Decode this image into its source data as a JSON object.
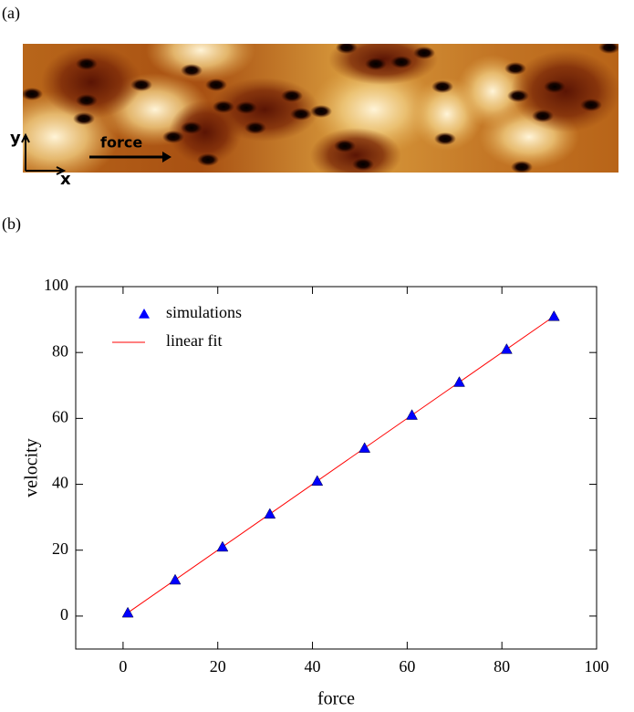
{
  "panel_a": {
    "label": "(a)",
    "arrow_label": "force",
    "axis_y": "y",
    "axis_x": "x"
  },
  "panel_b": {
    "label": "(b)"
  },
  "chart_data": {
    "type": "scatter",
    "xlabel": "force",
    "ylabel": "velocity",
    "xlim": [
      -10,
      100
    ],
    "ylim": [
      -10,
      100
    ],
    "xticks": [
      0,
      20,
      40,
      60,
      80,
      100
    ],
    "yticks": [
      0,
      20,
      40,
      60,
      80,
      100
    ],
    "legend": "upper left",
    "series": [
      {
        "name": "simulations",
        "color": "#0000ff",
        "marker": "triangle",
        "x": [
          1,
          11,
          21,
          31,
          41,
          51,
          61,
          71,
          81,
          91
        ],
        "values": [
          1,
          11,
          21,
          31,
          41,
          51,
          61,
          71,
          81,
          91
        ]
      },
      {
        "name": "linear fit",
        "color": "#ff0000",
        "marker": "line",
        "x": [
          1,
          91
        ],
        "values": [
          1,
          91
        ]
      }
    ]
  }
}
